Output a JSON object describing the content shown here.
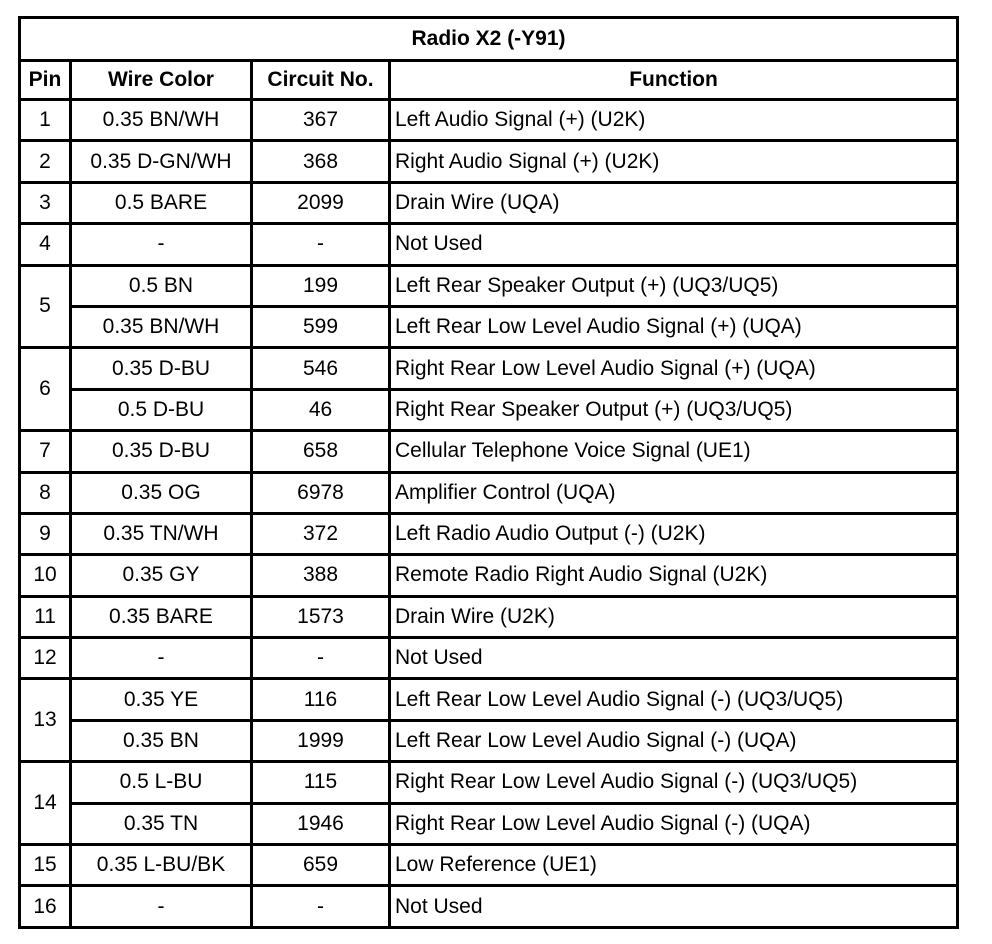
{
  "title": "Radio X2 (-Y91)",
  "headers": {
    "pin": "Pin",
    "wire_color": "Wire Color",
    "circuit": "Circuit No.",
    "function": "Function"
  },
  "pins": [
    {
      "pin": "1",
      "wires": [
        {
          "color": "0.35 BN/WH",
          "circuit": "367",
          "function": "Left Audio Signal (+) (U2K)"
        }
      ]
    },
    {
      "pin": "2",
      "wires": [
        {
          "color": "0.35 D-GN/WH",
          "circuit": "368",
          "function": "Right Audio Signal (+) (U2K)"
        }
      ]
    },
    {
      "pin": "3",
      "wires": [
        {
          "color": "0.5 BARE",
          "circuit": "2099",
          "function": "Drain Wire (UQA)"
        }
      ]
    },
    {
      "pin": "4",
      "wires": [
        {
          "color": "-",
          "circuit": "-",
          "function": "Not Used"
        }
      ]
    },
    {
      "pin": "5",
      "wires": [
        {
          "color": "0.5 BN",
          "circuit": "199",
          "function": "Left Rear Speaker Output (+) (UQ3/UQ5)"
        },
        {
          "color": "0.35 BN/WH",
          "circuit": "599",
          "function": "Left Rear Low Level Audio Signal (+) (UQA)"
        }
      ]
    },
    {
      "pin": "6",
      "wires": [
        {
          "color": "0.35 D-BU",
          "circuit": "546",
          "function": "Right Rear Low Level Audio Signal (+) (UQA)"
        },
        {
          "color": "0.5 D-BU",
          "circuit": "46",
          "function": "Right Rear Speaker Output (+) (UQ3/UQ5)"
        }
      ]
    },
    {
      "pin": "7",
      "wires": [
        {
          "color": "0.35 D-BU",
          "circuit": "658",
          "function": "Cellular Telephone Voice Signal (UE1)"
        }
      ]
    },
    {
      "pin": "8",
      "wires": [
        {
          "color": "0.35 OG",
          "circuit": "6978",
          "function": "Amplifier Control (UQA)"
        }
      ]
    },
    {
      "pin": "9",
      "wires": [
        {
          "color": "0.35 TN/WH",
          "circuit": "372",
          "function": "Left Radio Audio Output (-) (U2K)"
        }
      ]
    },
    {
      "pin": "10",
      "wires": [
        {
          "color": "0.35 GY",
          "circuit": "388",
          "function": "Remote Radio Right Audio Signal (U2K)"
        }
      ]
    },
    {
      "pin": "11",
      "wires": [
        {
          "color": "0.35 BARE",
          "circuit": "1573",
          "function": "Drain Wire (U2K)"
        }
      ]
    },
    {
      "pin": "12",
      "wires": [
        {
          "color": "-",
          "circuit": "-",
          "function": "Not Used"
        }
      ]
    },
    {
      "pin": "13",
      "wires": [
        {
          "color": "0.35 YE",
          "circuit": "116",
          "function": "Left Rear Low Level Audio Signal (-) (UQ3/UQ5)"
        },
        {
          "color": "0.35 BN",
          "circuit": "1999",
          "function": "Left Rear Low Level Audio Signal (-) (UQA)"
        }
      ]
    },
    {
      "pin": "14",
      "wires": [
        {
          "color": "0.5 L-BU",
          "circuit": "115",
          "function": "Right Rear Low Level Audio Signal (-) (UQ3/UQ5)"
        },
        {
          "color": "0.35 TN",
          "circuit": "1946",
          "function": "Right Rear Low Level Audio Signal (-) (UQA)"
        }
      ]
    },
    {
      "pin": "15",
      "wires": [
        {
          "color": "0.35 L-BU/BK",
          "circuit": "659",
          "function": "Low Reference (UE1)"
        }
      ]
    },
    {
      "pin": "16",
      "wires": [
        {
          "color": "-",
          "circuit": "-",
          "function": "Not Used"
        }
      ]
    }
  ]
}
